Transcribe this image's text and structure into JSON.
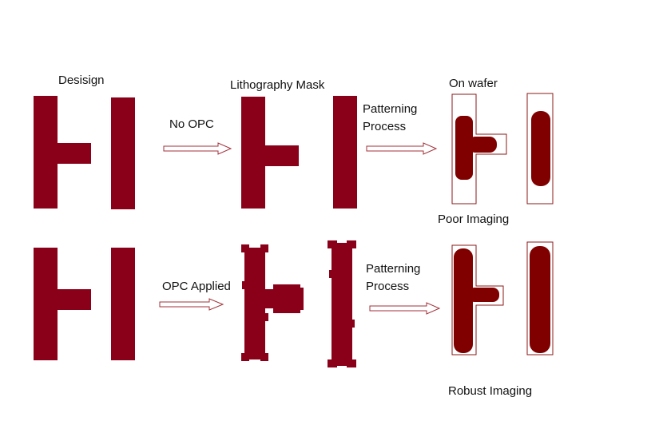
{
  "labels": {
    "design": "Desisign",
    "mask": "Lithography Mask",
    "wafer": "On wafer",
    "no_opc": "No OPC",
    "opc_applied": "OPC Applied",
    "patterning_1": "Patterning",
    "process_1": "Process",
    "patterning_2": "Patterning",
    "process_2": "Process",
    "poor_imaging": "Poor Imaging",
    "robust_imaging": "Robust Imaging"
  },
  "colors": {
    "pattern_fill": "#8b0019",
    "wafer_fill": "#800000",
    "outline": "#8b1a1a",
    "arrow_fill": "#ffffff",
    "arrow_stroke": "#a0303a"
  }
}
